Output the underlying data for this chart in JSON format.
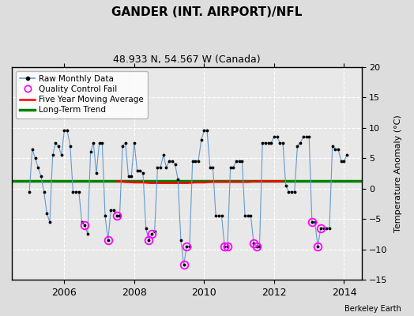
{
  "title": "GANDER (INT. AIRPORT)/NFL",
  "subtitle": "48.933 N, 54.567 W (Canada)",
  "ylabel": "Temperature Anomaly (°C)",
  "credit": "Berkeley Earth",
  "xlim": [
    2004.5,
    2014.5
  ],
  "ylim": [
    -15,
    20
  ],
  "yticks": [
    -15,
    -10,
    -5,
    0,
    5,
    10,
    15,
    20
  ],
  "xticks": [
    2006,
    2008,
    2010,
    2012,
    2014
  ],
  "long_term_trend_y": 1.3,
  "raw_data": [
    [
      2005.0,
      -0.5
    ],
    [
      2005.083,
      6.5
    ],
    [
      2005.167,
      5.0
    ],
    [
      2005.25,
      3.5
    ],
    [
      2005.333,
      2.0
    ],
    [
      2005.417,
      -0.5
    ],
    [
      2005.5,
      -4.0
    ],
    [
      2005.583,
      -5.5
    ],
    [
      2005.667,
      5.5
    ],
    [
      2005.75,
      7.5
    ],
    [
      2005.833,
      7.0
    ],
    [
      2005.917,
      5.5
    ],
    [
      2006.0,
      9.5
    ],
    [
      2006.083,
      9.5
    ],
    [
      2006.167,
      7.0
    ],
    [
      2006.25,
      -0.5
    ],
    [
      2006.333,
      -0.5
    ],
    [
      2006.417,
      -0.5
    ],
    [
      2006.5,
      -5.5
    ],
    [
      2006.583,
      -6.0
    ],
    [
      2006.667,
      -7.5
    ],
    [
      2006.75,
      6.0
    ],
    [
      2006.833,
      7.5
    ],
    [
      2006.917,
      2.5
    ],
    [
      2007.0,
      7.5
    ],
    [
      2007.083,
      7.5
    ],
    [
      2007.167,
      -4.5
    ],
    [
      2007.25,
      -8.5
    ],
    [
      2007.333,
      -3.5
    ],
    [
      2007.417,
      -3.5
    ],
    [
      2007.5,
      -4.5
    ],
    [
      2007.583,
      -4.5
    ],
    [
      2007.667,
      7.0
    ],
    [
      2007.75,
      7.5
    ],
    [
      2007.833,
      2.0
    ],
    [
      2007.917,
      2.0
    ],
    [
      2008.0,
      7.5
    ],
    [
      2008.083,
      3.0
    ],
    [
      2008.167,
      3.0
    ],
    [
      2008.25,
      2.5
    ],
    [
      2008.333,
      -6.5
    ],
    [
      2008.417,
      -8.5
    ],
    [
      2008.5,
      -7.5
    ],
    [
      2008.583,
      -7.0
    ],
    [
      2008.667,
      3.5
    ],
    [
      2008.75,
      3.5
    ],
    [
      2008.833,
      5.5
    ],
    [
      2008.917,
      3.5
    ],
    [
      2009.0,
      4.5
    ],
    [
      2009.083,
      4.5
    ],
    [
      2009.167,
      4.0
    ],
    [
      2009.25,
      1.5
    ],
    [
      2009.333,
      -8.5
    ],
    [
      2009.417,
      -12.5
    ],
    [
      2009.5,
      -9.5
    ],
    [
      2009.583,
      -9.5
    ],
    [
      2009.667,
      4.5
    ],
    [
      2009.75,
      4.5
    ],
    [
      2009.833,
      4.5
    ],
    [
      2009.917,
      8.0
    ],
    [
      2010.0,
      9.5
    ],
    [
      2010.083,
      9.5
    ],
    [
      2010.167,
      3.5
    ],
    [
      2010.25,
      3.5
    ],
    [
      2010.333,
      -4.5
    ],
    [
      2010.417,
      -4.5
    ],
    [
      2010.5,
      -4.5
    ],
    [
      2010.583,
      -9.5
    ],
    [
      2010.667,
      -9.5
    ],
    [
      2010.75,
      3.5
    ],
    [
      2010.833,
      3.5
    ],
    [
      2010.917,
      4.5
    ],
    [
      2011.0,
      4.5
    ],
    [
      2011.083,
      4.5
    ],
    [
      2011.167,
      -4.5
    ],
    [
      2011.25,
      -4.5
    ],
    [
      2011.333,
      -4.5
    ],
    [
      2011.417,
      -9.0
    ],
    [
      2011.5,
      -9.5
    ],
    [
      2011.583,
      -9.5
    ],
    [
      2011.667,
      7.5
    ],
    [
      2011.75,
      7.5
    ],
    [
      2011.833,
      7.5
    ],
    [
      2011.917,
      7.5
    ],
    [
      2012.0,
      8.5
    ],
    [
      2012.083,
      8.5
    ],
    [
      2012.167,
      7.5
    ],
    [
      2012.25,
      7.5
    ],
    [
      2012.333,
      0.5
    ],
    [
      2012.417,
      -0.5
    ],
    [
      2012.5,
      -0.5
    ],
    [
      2012.583,
      -0.5
    ],
    [
      2012.667,
      7.0
    ],
    [
      2012.75,
      7.5
    ],
    [
      2012.833,
      8.5
    ],
    [
      2012.917,
      8.5
    ],
    [
      2013.0,
      8.5
    ],
    [
      2013.083,
      -5.5
    ],
    [
      2013.167,
      -5.5
    ],
    [
      2013.25,
      -9.5
    ],
    [
      2013.333,
      -6.5
    ],
    [
      2013.417,
      -6.5
    ],
    [
      2013.5,
      -6.5
    ],
    [
      2013.583,
      -6.5
    ],
    [
      2013.667,
      7.0
    ],
    [
      2013.75,
      6.5
    ],
    [
      2013.833,
      6.5
    ],
    [
      2013.917,
      4.5
    ],
    [
      2014.0,
      4.5
    ],
    [
      2014.083,
      5.5
    ]
  ],
  "qc_fail_x": [
    2006.583,
    2007.25,
    2007.5,
    2008.417,
    2008.5,
    2009.417,
    2009.5,
    2010.583,
    2010.667,
    2011.417,
    2011.5,
    2013.083,
    2013.25,
    2013.333
  ],
  "qc_fail_y": [
    -6.0,
    -8.5,
    -4.5,
    -8.5,
    -7.5,
    -12.5,
    -9.5,
    -9.5,
    -9.5,
    -9.0,
    -9.5,
    -5.5,
    -9.5,
    -6.5
  ],
  "moving_avg_x": [
    2007.5,
    2007.75,
    2008.0,
    2008.25,
    2008.5,
    2008.75,
    2009.0,
    2009.25,
    2009.5,
    2009.75,
    2010.0,
    2010.25,
    2010.5,
    2010.75,
    2011.0,
    2011.25,
    2011.5,
    2011.75,
    2012.0,
    2012.25
  ],
  "moving_avg_y": [
    1.2,
    1.1,
    1.0,
    1.0,
    0.9,
    0.9,
    0.9,
    0.9,
    0.9,
    1.0,
    1.0,
    1.1,
    1.1,
    1.1,
    1.1,
    1.1,
    1.2,
    1.2,
    1.2,
    1.2
  ],
  "line_color": "#6699cc",
  "dot_color": "black",
  "qc_color": "magenta",
  "red_color": "red",
  "green_color": "green",
  "bg_color": "#e8e8e8",
  "fig_bg": "#dddddd",
  "grid_color": "white"
}
